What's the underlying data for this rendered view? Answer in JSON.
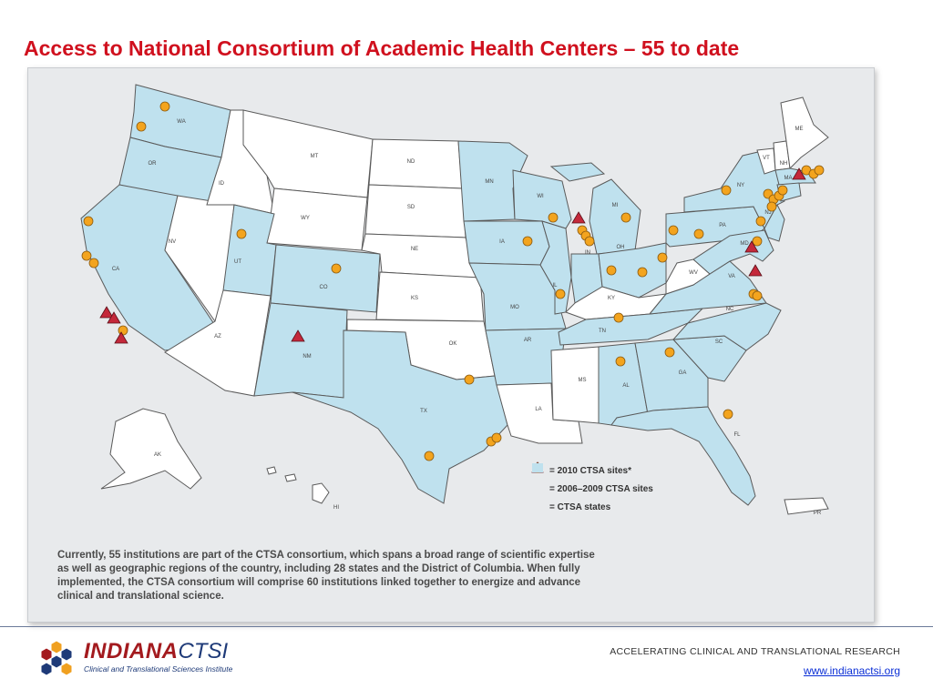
{
  "slide": {
    "title": "Access to National Consortium of Academic Health Centers – 55 to date"
  },
  "map": {
    "caption": "Currently, 55 institutions are part of the CTSA consortium, which spans a broad range of scientific expertise as well as geographic regions of the country, including 28 states and the District of Columbia. When fully implemented, the CTSA consortium will comprise 60 institutions linked together to energize and advance clinical and translational science.",
    "colors": {
      "ctsa_state": "#bfe1ee",
      "other_state": "#ffffff",
      "state_border": "#5a5a5a",
      "site_2010": "#c4283a",
      "site_2006_2009": "#f3a41e",
      "background": "#e8eaec"
    },
    "state_labels": [
      "WA",
      "OR",
      "CA",
      "NV",
      "ID",
      "MT",
      "WY",
      "UT",
      "AZ",
      "CO",
      "NM",
      "ND",
      "SD",
      "NE",
      "KS",
      "OK",
      "TX",
      "MN",
      "IA",
      "MO",
      "AR",
      "LA",
      "WI",
      "IL",
      "MI",
      "IN",
      "OH",
      "KY",
      "TN",
      "MS",
      "AL",
      "GA",
      "FL",
      "SC",
      "NC",
      "VA",
      "WV",
      "PA",
      "NY",
      "VT",
      "NH",
      "ME",
      "MA",
      "NJ",
      "MD",
      "AK",
      "HI",
      "PR"
    ],
    "ctsa_states": [
      "WA",
      "OR",
      "CA",
      "UT",
      "CO",
      "NM",
      "TX",
      "MN",
      "IA",
      "MO",
      "AR",
      "WI",
      "IL",
      "MI",
      "IN",
      "OH",
      "TN",
      "AL",
      "GA",
      "FL",
      "SC",
      "NC",
      "VA",
      "PA",
      "NY",
      "MA",
      "NJ",
      "MD"
    ],
    "legend": {
      "site_2010": "= 2010 CTSA sites*",
      "site_2006_2009": "= 2006–2009 CTSA sites",
      "ctsa_states": "= CTSA states"
    },
    "icons": {
      "site_2010": "triangle-marker-icon",
      "site_2006_2009": "circle-marker-icon",
      "ctsa_states": "light-blue-swatch-icon"
    }
  },
  "footer": {
    "logo_word1": "INDIANA",
    "logo_word2": "CTSI",
    "logo_subtitle": "Clinical and Translational Sciences Institute",
    "tagline": "ACCELERATING CLINICAL AND TRANSLATIONAL RESEARCH",
    "link": "www.indianactsi.org"
  }
}
